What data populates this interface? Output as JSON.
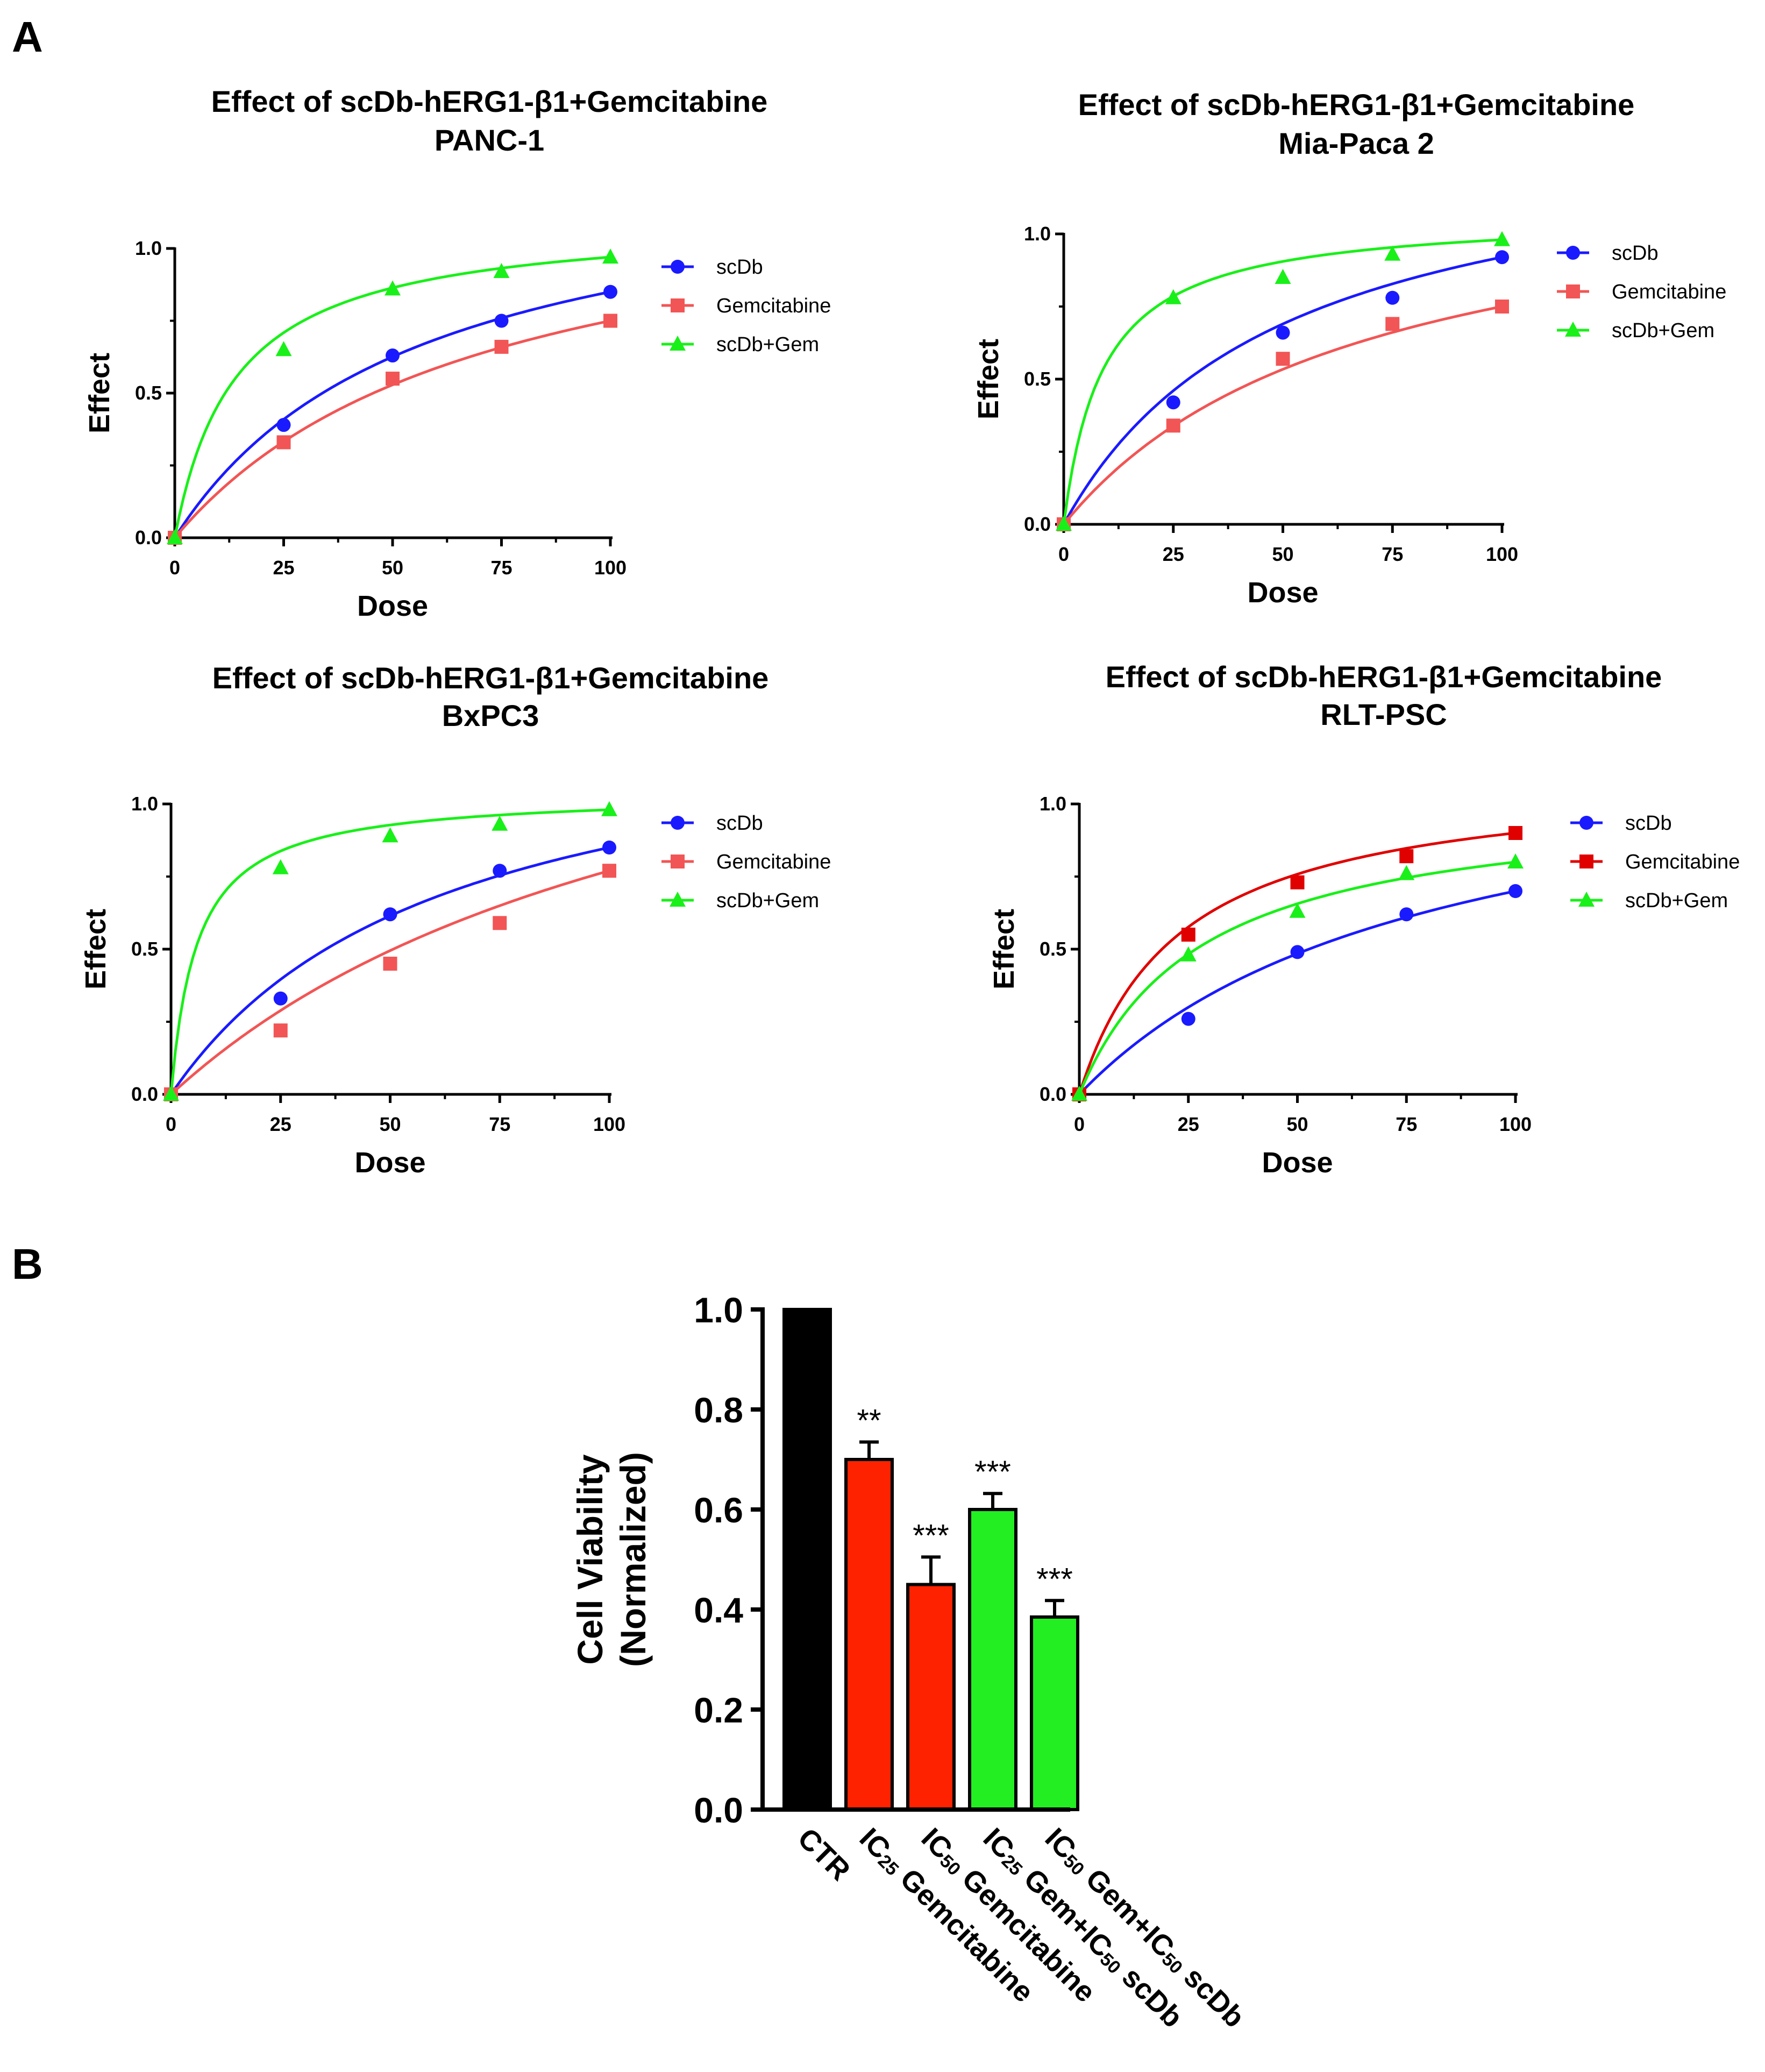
{
  "panel_labels": {
    "a": "A",
    "b": "B"
  },
  "colors": {
    "blue": "#1a1aff",
    "red": "#f25555",
    "red_dark": "#e00000",
    "green": "#19f019",
    "black": "#000000",
    "bar_red": "#ff2200",
    "bar_green": "#22ee22"
  },
  "chart_data": [
    {
      "type": "line",
      "title_line1": "Effect of scDb-hERG1-β1+Gemcitabine",
      "title_line2": "PANC-1",
      "xlabel": "Dose",
      "ylabel": "Effect",
      "xlim": [
        0,
        100
      ],
      "ylim": [
        0,
        1.0
      ],
      "xticks": [
        "0",
        "25",
        "50",
        "75",
        "100"
      ],
      "yticks": [
        "0.0",
        "0.5",
        "1.0"
      ],
      "x": [
        0,
        25,
        50,
        75,
        100
      ],
      "series": [
        {
          "name": "scDb",
          "marker": "circle",
          "color": "#1a1aff",
          "values": [
            0,
            0.39,
            0.63,
            0.75,
            0.85
          ],
          "fit_k": 56
        },
        {
          "name": "Gemcitabine",
          "marker": "square",
          "color": "#f25555",
          "values": [
            0,
            0.33,
            0.55,
            0.66,
            0.75
          ],
          "fit_k": 72
        },
        {
          "name": "scDb+Gem",
          "marker": "triangle",
          "color": "#19f019",
          "values": [
            0,
            0.65,
            0.86,
            0.92,
            0.97
          ],
          "fit_k": 14
        }
      ]
    },
    {
      "type": "line",
      "title_line1": "Effect of scDb-hERG1-β1+Gemcitabine",
      "title_line2": "Mia-Paca 2",
      "xlabel": "Dose",
      "ylabel": "Effect",
      "xlim": [
        0,
        100
      ],
      "ylim": [
        0,
        1.0
      ],
      "xticks": [
        "0",
        "25",
        "50",
        "75",
        "100"
      ],
      "yticks": [
        "0.0",
        "0.5",
        "1.0"
      ],
      "x": [
        0,
        25,
        50,
        75,
        100
      ],
      "series": [
        {
          "name": "scDb",
          "marker": "circle",
          "color": "#1a1aff",
          "values": [
            0,
            0.42,
            0.66,
            0.78,
            0.92
          ],
          "fit_k": 50
        },
        {
          "name": "Gemcitabine",
          "marker": "square",
          "color": "#f25555",
          "values": [
            0,
            0.34,
            0.57,
            0.69,
            0.75
          ],
          "fit_k": 68
        },
        {
          "name": "scDb+Gem",
          "marker": "triangle",
          "color": "#19f019",
          "values": [
            0,
            0.78,
            0.85,
            0.93,
            0.98
          ],
          "fit_k": 9
        }
      ]
    },
    {
      "type": "line",
      "title_line1": "Effect of scDb-hERG1-β1+Gemcitabine",
      "title_line2": "BxPC3",
      "xlabel": "Dose",
      "ylabel": "Effect",
      "xlim": [
        0,
        100
      ],
      "ylim": [
        0,
        1.0
      ],
      "xticks": [
        "0",
        "25",
        "50",
        "75",
        "100"
      ],
      "yticks": [
        "0.0",
        "0.5",
        "1.0"
      ],
      "x": [
        0,
        25,
        50,
        75,
        100
      ],
      "series": [
        {
          "name": "scDb",
          "marker": "circle",
          "color": "#1a1aff",
          "values": [
            0,
            0.33,
            0.62,
            0.77,
            0.85
          ],
          "fit_k": 62
        },
        {
          "name": "Gemcitabine",
          "marker": "square",
          "color": "#f25555",
          "values": [
            0,
            0.22,
            0.45,
            0.59,
            0.77
          ],
          "fit_k": 125
        },
        {
          "name": "scDb+Gem",
          "marker": "triangle",
          "color": "#19f019",
          "values": [
            0,
            0.78,
            0.89,
            0.93,
            0.98
          ],
          "fit_k": 6
        }
      ]
    },
    {
      "type": "line",
      "title_line1": "Effect of scDb-hERG1-β1+Gemcitabine",
      "title_line2": "RLT-PSC",
      "xlabel": "Dose",
      "ylabel": "Effect",
      "xlim": [
        0,
        100
      ],
      "ylim": [
        0,
        1.0
      ],
      "xticks": [
        "0",
        "25",
        "50",
        "75",
        "100"
      ],
      "yticks": [
        "0.0",
        "0.5",
        "1.0"
      ],
      "x": [
        0,
        25,
        50,
        75,
        100
      ],
      "series": [
        {
          "name": "scDb",
          "marker": "circle",
          "color": "#1a1aff",
          "values": [
            0,
            0.26,
            0.49,
            0.62,
            0.7
          ],
          "fit_k": 80
        },
        {
          "name": "Gemcitabine",
          "marker": "square",
          "color": "#e00000",
          "values": [
            0,
            0.55,
            0.73,
            0.82,
            0.9
          ],
          "fit_k": 23
        },
        {
          "name": "scDb+Gem",
          "marker": "triangle",
          "color": "#19f019",
          "values": [
            0,
            0.48,
            0.63,
            0.76,
            0.8
          ],
          "fit_k": 28
        }
      ]
    },
    {
      "type": "bar",
      "ylabel_line1": "Cell Viability",
      "ylabel_line2": "(Normalized)",
      "ylim": [
        0,
        1.0
      ],
      "yticks": [
        "0.0",
        "0.2",
        "0.4",
        "0.6",
        "0.8",
        "1.0"
      ],
      "categories": [
        {
          "parts": [
            "CTR"
          ]
        },
        {
          "parts": [
            "IC",
            "25",
            " Gemcitabine"
          ]
        },
        {
          "parts": [
            "IC",
            "50",
            " Gemcitabine"
          ]
        },
        {
          "parts": [
            "IC",
            "25",
            " Gem+IC",
            "50",
            " scDb"
          ]
        },
        {
          "parts": [
            "IC",
            "50",
            " Gem+IC",
            "50",
            " scDb"
          ]
        }
      ],
      "values": [
        1.0,
        0.7,
        0.45,
        0.6,
        0.385
      ],
      "errors": [
        0,
        0.035,
        0.055,
        0.032,
        0.033
      ],
      "significance": [
        "",
        "**",
        "***",
        "***",
        "***"
      ],
      "bar_colors": [
        "#000000",
        "#ff2200",
        "#ff2200",
        "#22ee22",
        "#22ee22"
      ]
    }
  ]
}
